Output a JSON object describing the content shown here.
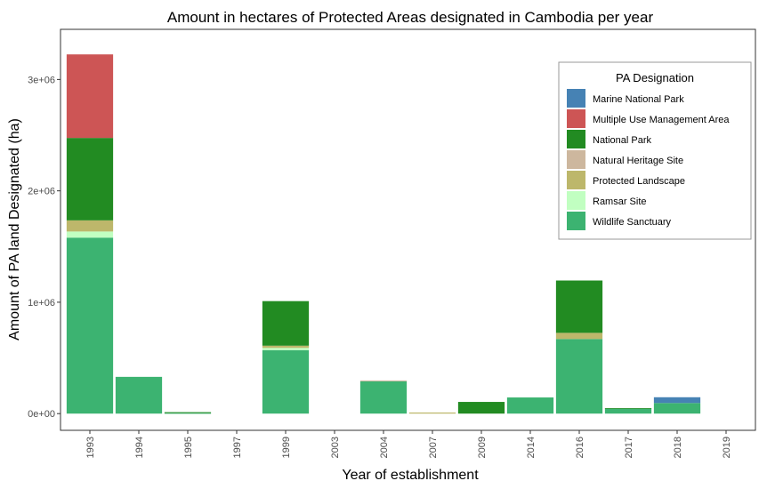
{
  "chart_data": {
    "type": "bar",
    "stacked": true,
    "title": "Amount in hectares of Protected Areas designated in Cambodia per year",
    "xlabel": "Year of establishment",
    "ylabel": "Amount of PA land Designated (ha)",
    "ylim": [
      -150000,
      3450000
    ],
    "yticks": [
      0,
      1000000,
      2000000,
      3000000
    ],
    "ytick_labels": [
      "0e+00",
      "1e+06",
      "2e+06",
      "3e+06"
    ],
    "categories": [
      "1993",
      "1994",
      "1995",
      "1997",
      "1999",
      "2003",
      "2004",
      "2007",
      "2009",
      "2014",
      "2016",
      "2017",
      "2018",
      "2019"
    ],
    "legend": {
      "title": "PA Designation",
      "position": "top-right"
    },
    "grid": false,
    "series": [
      {
        "name": "Marine National Park",
        "color": "#4682B4",
        "values": [
          0,
          0,
          0,
          0,
          0,
          0,
          0,
          0,
          0,
          0,
          0,
          0,
          52000,
          0
        ]
      },
      {
        "name": "Multiple Use Management Area",
        "color": "#CD5555",
        "values": [
          750000,
          0,
          0,
          0,
          0,
          0,
          0,
          0,
          0,
          0,
          0,
          0,
          0,
          0
        ]
      },
      {
        "name": "National Park",
        "color": "#228B22",
        "values": [
          740000,
          0,
          8000,
          0,
          400000,
          0,
          0,
          0,
          105000,
          0,
          470000,
          4000,
          0,
          0
        ]
      },
      {
        "name": "Natural Heritage Site",
        "color": "#CDB79E",
        "values": [
          0,
          0,
          0,
          0,
          0,
          0,
          8000,
          0,
          0,
          0,
          0,
          0,
          0,
          0
        ]
      },
      {
        "name": "Protected Landscape",
        "color": "#BDB76B",
        "values": [
          100000,
          0,
          0,
          0,
          20000,
          0,
          0,
          10000,
          0,
          0,
          55000,
          0,
          0,
          0
        ]
      },
      {
        "name": "Ramsar Site",
        "color": "#C1FFC1",
        "values": [
          55000,
          0,
          0,
          0,
          20000,
          0,
          0,
          0,
          0,
          0,
          0,
          0,
          0,
          0
        ]
      },
      {
        "name": "Wildlife Sanctuary",
        "color": "#3CB371",
        "values": [
          1580000,
          330000,
          5000,
          0,
          570000,
          0,
          290000,
          0,
          0,
          145000,
          670000,
          45000,
          95000,
          0
        ]
      }
    ]
  }
}
